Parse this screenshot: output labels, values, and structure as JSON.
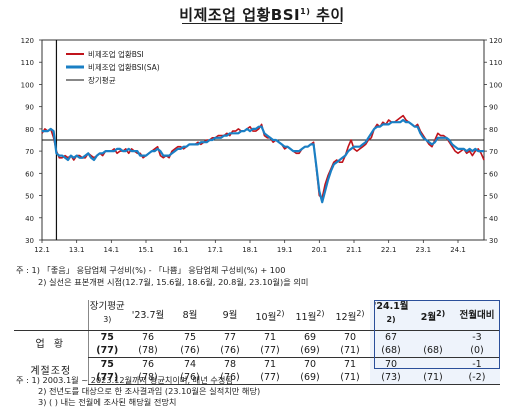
{
  "title": "비제조업 업황BSI",
  "title_sup": "1)",
  "title_suffix": "추이",
  "chart_data": {
    "type": "line",
    "ylim": [
      30,
      120
    ],
    "yticks": [
      30,
      40,
      50,
      60,
      70,
      80,
      90,
      100,
      110,
      120
    ],
    "xticks": [
      "12.1",
      "13.1",
      "14.1",
      "15.1",
      "16.1",
      "17.1",
      "18.1",
      "19.1",
      "20.1",
      "21.1",
      "22.1",
      "23.1",
      "24.1"
    ],
    "legend_position": "top-left",
    "long_term_average": 75,
    "recession_marker": "12.6",
    "series": [
      {
        "name": "비제조업 업황BSI",
        "color": "#c0141c",
        "values": [
          78,
          80,
          79,
          80,
          76,
          70,
          67,
          67,
          68,
          67,
          68,
          66,
          68,
          68,
          67,
          67,
          69,
          68,
          67,
          68,
          69,
          68,
          70,
          70,
          70,
          71,
          69,
          70,
          70,
          71,
          69,
          71,
          70,
          69,
          69,
          67,
          68,
          69,
          70,
          71,
          72,
          68,
          67,
          68,
          67,
          70,
          71,
          72,
          72,
          71,
          72,
          73,
          73,
          73,
          74,
          73,
          74,
          75,
          75,
          76,
          76,
          77,
          77,
          77,
          78,
          77,
          79,
          79,
          80,
          79,
          79,
          80,
          81,
          79,
          79,
          80,
          82,
          77,
          76,
          76,
          74,
          75,
          74,
          73,
          71,
          72,
          71,
          70,
          69,
          69,
          71,
          72,
          72,
          73,
          74,
          62,
          50,
          49,
          55,
          59,
          62,
          65,
          66,
          65,
          65,
          68,
          72,
          75,
          71,
          70,
          71,
          72,
          73,
          75,
          76,
          80,
          82,
          81,
          83,
          82,
          84,
          83,
          83,
          84,
          85,
          86,
          84,
          83,
          82,
          81,
          82,
          79,
          77,
          75,
          73,
          72,
          75,
          78,
          77,
          77,
          76,
          74,
          72,
          70,
          69,
          70,
          71,
          69,
          70,
          68,
          70,
          71,
          69,
          66
        ]
      },
      {
        "name": "비제조업 업황BSI(SA)",
        "color": "#1a7fc4",
        "values": [
          79,
          79,
          79,
          80,
          79,
          69,
          68,
          68,
          67,
          66,
          68,
          67,
          68,
          67,
          67,
          68,
          69,
          67,
          66,
          68,
          69,
          69,
          70,
          70,
          70,
          70,
          71,
          71,
          70,
          70,
          71,
          70,
          70,
          70,
          68,
          68,
          68,
          69,
          70,
          70,
          71,
          70,
          68,
          68,
          68,
          69,
          70,
          71,
          71,
          72,
          72,
          73,
          73,
          73,
          73,
          74,
          74,
          74,
          75,
          75,
          76,
          76,
          76,
          77,
          77,
          78,
          78,
          78,
          78,
          79,
          79,
          80,
          79,
          80,
          80,
          81,
          81,
          78,
          77,
          76,
          75,
          75,
          74,
          73,
          72,
          72,
          71,
          70,
          70,
          70,
          71,
          72,
          72,
          73,
          73,
          63,
          52,
          47,
          52,
          57,
          61,
          64,
          65,
          66,
          67,
          68,
          70,
          71,
          72,
          72,
          72,
          73,
          74,
          76,
          78,
          80,
          81,
          81,
          82,
          82,
          82,
          83,
          83,
          83,
          83,
          84,
          83,
          83,
          82,
          81,
          81,
          78,
          76,
          75,
          74,
          73,
          74,
          76,
          76,
          76,
          76,
          75,
          73,
          72,
          71,
          71,
          71,
          70,
          71,
          70,
          71,
          70,
          70,
          70
        ]
      },
      {
        "name": "장기평균",
        "color": "#111111",
        "values": [
          75
        ]
      }
    ]
  },
  "notes": [
    "주 : 1) 「좋음」 응답업체 구성비(%) - 「나쁨」 응답업체 구성비(%) + 100",
    "2) 실선은 표본개편 시점(12.7월, 15.6월, 18.6월, 20.8월, 23.10월)을 의미"
  ],
  "table": {
    "headers": [
      "장기평균",
      "'23.7월",
      "8월",
      "9월",
      "10월",
      "11월",
      "12월",
      "'24.1월",
      "2월",
      "전월대비"
    ],
    "header_sups": [
      "3)",
      "",
      "",
      "",
      "2)",
      "2)",
      "2)",
      "2)",
      "2)",
      ""
    ],
    "rows": [
      {
        "label": "업 황",
        "values": [
          "75",
          "76",
          "75",
          "77",
          "71",
          "69",
          "70",
          "67",
          "",
          "-3"
        ],
        "sub": [
          "(77)",
          "(78)",
          "(76)",
          "(76)",
          "(77)",
          "(69)",
          "(71)",
          "(68)",
          "(68)",
          "(0)"
        ]
      },
      {
        "label": "계절조정",
        "values": [
          "75",
          "76",
          "74",
          "78",
          "71",
          "70",
          "71",
          "70",
          "",
          "-1"
        ],
        "sub": [
          "(77)",
          "(78)",
          "(76)",
          "(76)",
          "(77)",
          "(69)",
          "(71)",
          "(73)",
          "(71)",
          "(-2)"
        ]
      }
    ]
  },
  "footer": [
    "주 : 1) 2003.1월 ~ 2023.12월까지 평균치이며, 매년 수정됨",
    "2) 전년도를 대상으로 한 조사결과임 (23.10월은 실적치만 해당)",
    "3) ( ) 내는 전월에 조사된 해당월 전망치"
  ]
}
